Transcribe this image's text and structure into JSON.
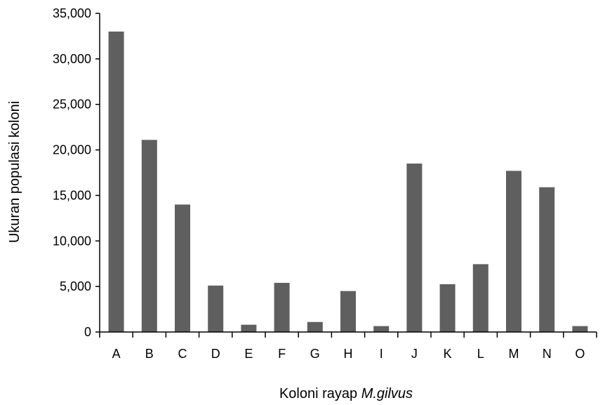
{
  "chart_data": {
    "type": "bar",
    "title": "",
    "xlabel": "Koloni rayap ",
    "xlabel_italic": "M.gilvus",
    "ylabel": "Ukuran populasi koloni",
    "categories": [
      "A",
      "B",
      "C",
      "D",
      "E",
      "F",
      "G",
      "H",
      "I",
      "J",
      "K",
      "L",
      "M",
      "N",
      "O"
    ],
    "values": [
      33000,
      21100,
      14000,
      5100,
      800,
      5400,
      1100,
      4500,
      650,
      18500,
      5250,
      7450,
      17700,
      15900,
      650
    ],
    "ylim": [
      0,
      35000
    ],
    "yticks": [
      0,
      5000,
      10000,
      15000,
      20000,
      25000,
      30000,
      35000
    ],
    "ytick_labels": [
      "0",
      "5,000",
      "10,000",
      "15,000",
      "20,000",
      "25,000",
      "30,000",
      "35,000"
    ],
    "grid": false,
    "legend": "none",
    "bar_color": "#5f5f5f"
  }
}
